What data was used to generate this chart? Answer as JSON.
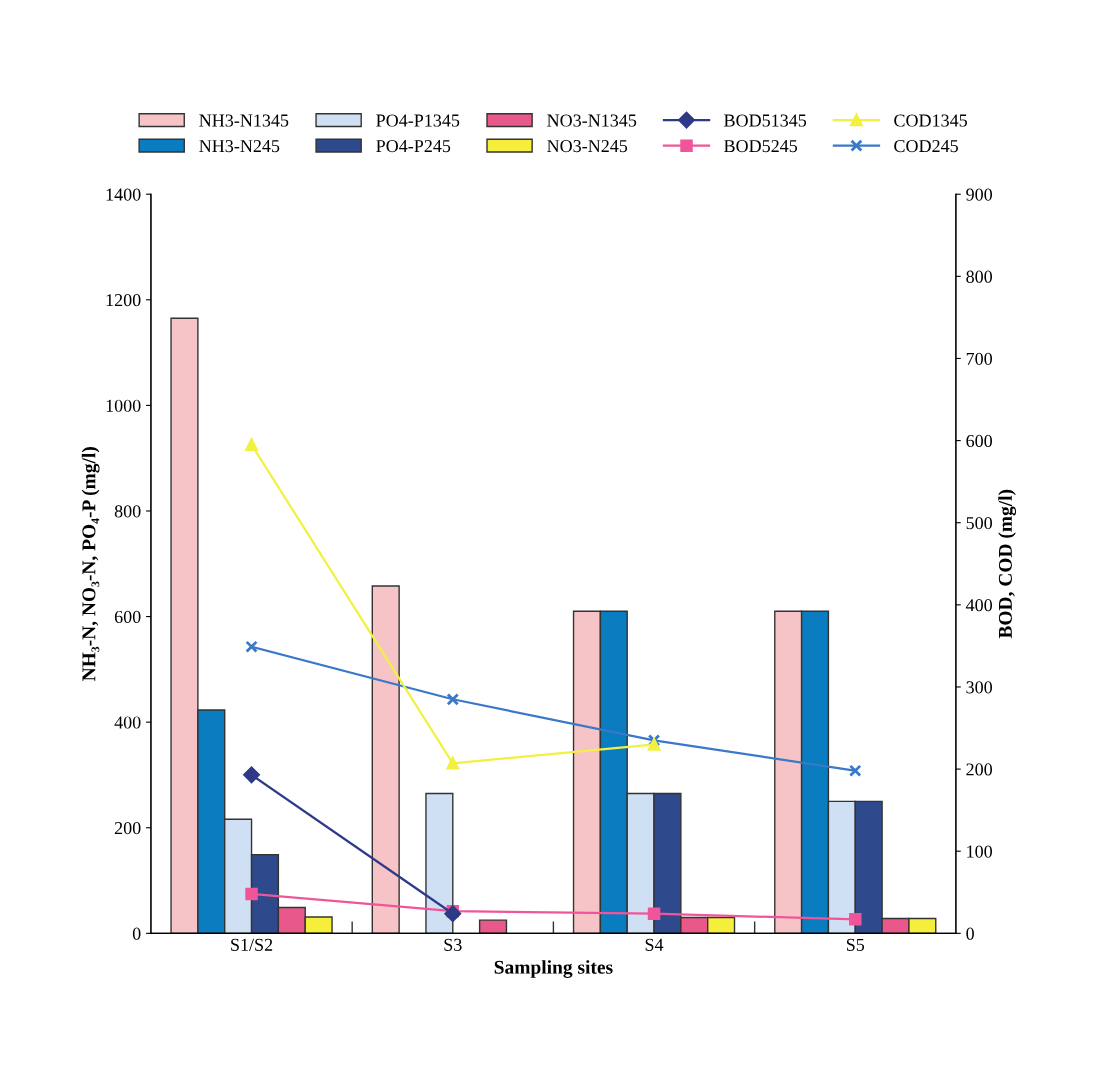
{
  "chart_data": {
    "type": "bar",
    "xlabel": "Sampling sites",
    "ylabel": "NH₃-N, NO₃-N, PO₄-P (mg/l)",
    "y2label": "BOD, COD (mg/l)",
    "categories": [
      "S1/S2",
      "S3",
      "S4",
      "S5"
    ],
    "series": [
      {
        "name": "NH3-N1345",
        "color": "#f6c4c6",
        "values": [
          1165,
          658,
          610,
          610
        ]
      },
      {
        "name": "NH3-N245",
        "color": "#0a7cc0",
        "values": [
          423,
          null,
          610,
          610
        ]
      },
      {
        "name": "PO4-P1345",
        "color": "#cfe0f5",
        "values": [
          216,
          265,
          265,
          250
        ]
      },
      {
        "name": "PO4-P245",
        "color": "#2f4a8c",
        "values": [
          149,
          null,
          265,
          250
        ]
      },
      {
        "name": "NO3-N1345",
        "color": "#e8588a",
        "values": [
          49,
          25,
          30,
          28
        ]
      },
      {
        "name": "NO3-N245",
        "color": "#f5ee3a",
        "values": [
          31,
          null,
          30,
          28
        ]
      },
      {
        "name": "BOD51345",
        "type": "line",
        "axis": "y2",
        "marker": "diamond",
        "color": "#2e3a87",
        "values": [
          193,
          24,
          null,
          null
        ]
      },
      {
        "name": "BOD5245",
        "type": "line",
        "axis": "y2",
        "marker": "square",
        "color": "#f0559a",
        "values": [
          48,
          27,
          24,
          17
        ]
      },
      {
        "name": "COD1345",
        "type": "line",
        "axis": "y2",
        "marker": "triangle",
        "color": "#f2f040",
        "values": [
          595,
          207,
          230,
          null
        ]
      },
      {
        "name": "COD245",
        "type": "line",
        "axis": "y2",
        "marker": "cross",
        "color": "#3a78c8",
        "values": [
          349,
          285,
          235,
          198
        ]
      }
    ],
    "ylim": [
      0,
      1400
    ],
    "yticks": [
      0,
      200,
      400,
      600,
      800,
      1000,
      1200,
      1400
    ],
    "y2lim": [
      0,
      900
    ],
    "y2ticks": [
      0,
      100,
      200,
      300,
      400,
      500,
      600,
      700,
      800,
      900
    ],
    "legend": "top",
    "grid": false
  }
}
